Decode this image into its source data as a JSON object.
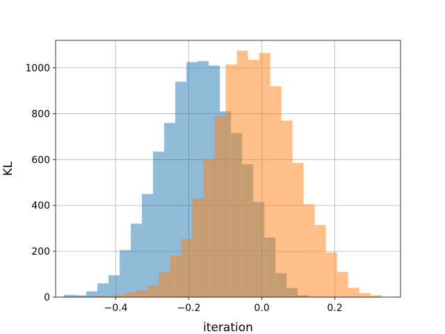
{
  "chart_data": {
    "type": "bar",
    "title": "",
    "xlabel": "iteration",
    "ylabel": "KL",
    "xlim": [
      -0.565,
      0.38
    ],
    "ylim": [
      0,
      1120
    ],
    "xticks": [
      -0.4,
      -0.2,
      0.0,
      0.2
    ],
    "xtick_labels": [
      "−0.4",
      "−0.2",
      "0.0",
      "0.2"
    ],
    "yticks": [
      0,
      200,
      400,
      600,
      800,
      1000
    ],
    "ytick_labels": [
      "0",
      "200",
      "400",
      "600",
      "800",
      "1000"
    ],
    "grid": true,
    "legend": "none",
    "series": [
      {
        "color": "#1f77b4",
        "alpha": 0.5,
        "bin_edges": [
          -0.542,
          -0.5115,
          -0.481,
          -0.4505,
          -0.42,
          -0.3895,
          -0.359,
          -0.3285,
          -0.298,
          -0.2675,
          -0.237,
          -0.2065,
          -0.176,
          -0.1455,
          -0.115,
          -0.0845,
          -0.054,
          -0.0235,
          0.007,
          0.0375,
          0.068,
          0.0985,
          0.129
        ],
        "counts": [
          10,
          8,
          25,
          60,
          95,
          205,
          320,
          450,
          635,
          760,
          940,
          1025,
          1030,
          1010,
          810,
          715,
          580,
          415,
          260,
          105,
          40,
          8
        ]
      },
      {
        "color": "#ff7f0e",
        "alpha": 0.5,
        "bin_edges": [
          -0.465,
          -0.4345,
          -0.404,
          -0.3735,
          -0.343,
          -0.3125,
          -0.282,
          -0.2515,
          -0.221,
          -0.1905,
          -0.16,
          -0.1295,
          -0.099,
          -0.0685,
          -0.038,
          -0.0075,
          0.023,
          0.0535,
          0.084,
          0.1145,
          0.145,
          0.1755,
          0.206,
          0.2365,
          0.267,
          0.2975,
          0.328
        ],
        "counts": [
          5,
          5,
          10,
          20,
          30,
          50,
          110,
          180,
          255,
          430,
          600,
          790,
          1015,
          1075,
          1035,
          1065,
          920,
          770,
          585,
          405,
          315,
          195,
          110,
          40,
          18,
          8
        ]
      }
    ]
  }
}
